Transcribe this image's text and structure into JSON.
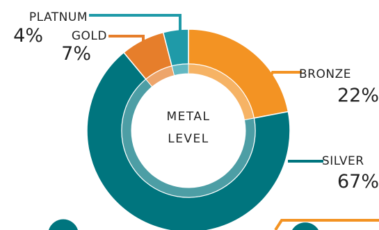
{
  "chart_data": {
    "type": "pie",
    "variant": "donut",
    "center_label": [
      "METAL",
      "LEVEL"
    ],
    "slices": [
      {
        "label": "BRONZE",
        "value": 22,
        "value_label": "22%",
        "color": "#f39323"
      },
      {
        "label": "SILVER",
        "value": 67,
        "value_label": "67%",
        "color": "#00757e"
      },
      {
        "label": "GOLD",
        "value": 7,
        "value_label": "7%",
        "color": "#e67e2b"
      },
      {
        "label": "PLATNUM",
        "value": 4,
        "value_label": "4%",
        "color": "#1f9aa8"
      }
    ],
    "colors": {
      "inner_ring_tint": "#ffffff",
      "text": "#222222"
    }
  }
}
